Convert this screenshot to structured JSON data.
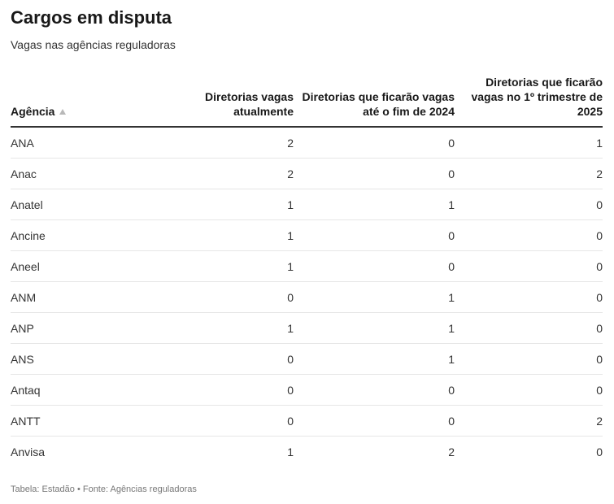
{
  "title": "Cargos em disputa",
  "subtitle": "Vagas nas agências reguladoras",
  "footer": "Tabela: Estadão • Fonte: Agências reguladoras",
  "chart_data": {
    "type": "table",
    "title": "Cargos em disputa",
    "subtitle": "Vagas nas agências reguladoras",
    "columns": [
      {
        "label": "Agência",
        "sortable": true,
        "sort": "ascending"
      },
      {
        "label": "Diretorias vagas atualmente"
      },
      {
        "label": "Diretorias que ficarão vagas até o fim de 2024"
      },
      {
        "label": "Diretorias que ficarão vagas no 1º trimestre de 2025"
      }
    ],
    "rows": [
      [
        "ANA",
        2,
        0,
        1
      ],
      [
        "Anac",
        2,
        0,
        2
      ],
      [
        "Anatel",
        1,
        1,
        0
      ],
      [
        "Ancine",
        1,
        0,
        0
      ],
      [
        "Aneel",
        1,
        0,
        0
      ],
      [
        "ANM",
        0,
        1,
        0
      ],
      [
        "ANP",
        1,
        1,
        0
      ],
      [
        "ANS",
        0,
        1,
        0
      ],
      [
        "Antaq",
        0,
        0,
        0
      ],
      [
        "ANTT",
        0,
        0,
        2
      ],
      [
        "Anvisa",
        1,
        2,
        0
      ]
    ],
    "colors": {
      "header_rule": "#333333",
      "row_rule": "#e6e6e6",
      "sort_icon": "#b8b8b8"
    }
  }
}
